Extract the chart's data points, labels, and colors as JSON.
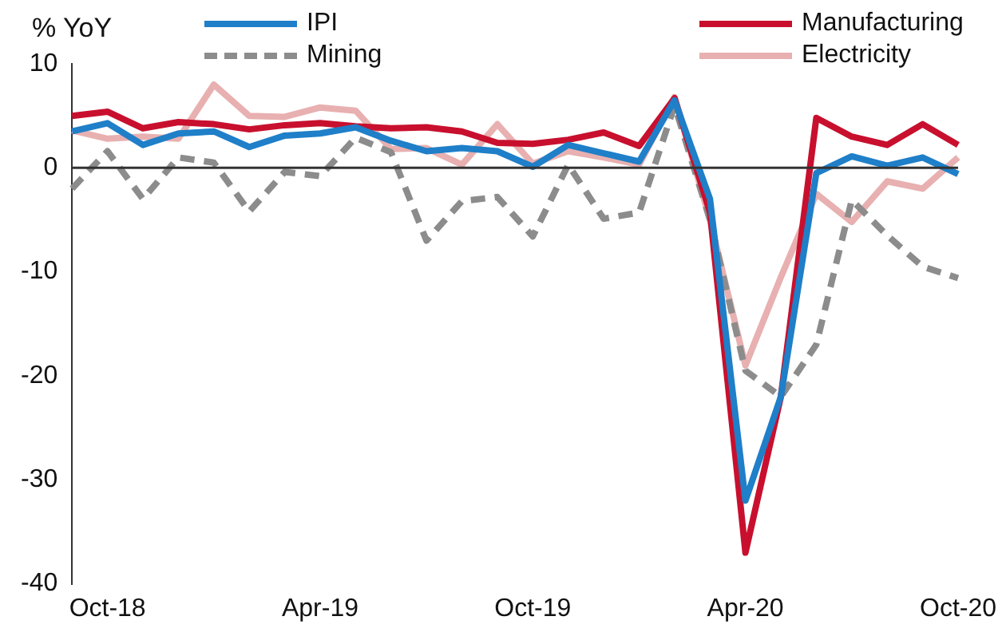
{
  "chart_data": {
    "type": "line",
    "ylabel": "% YoY",
    "categories": [
      null,
      "Oct-18",
      null,
      null,
      null,
      null,
      null,
      "Apr-19",
      null,
      null,
      null,
      null,
      null,
      "Oct-19",
      null,
      null,
      null,
      null,
      null,
      "Apr-20",
      null,
      null,
      null,
      null,
      null,
      "Oct-20"
    ],
    "series": [
      {
        "name": "IPI",
        "color": "#1f7fc8",
        "values": [
          3.5,
          4.3,
          2.2,
          3.3,
          3.5,
          2.0,
          3.1,
          3.3,
          3.9,
          2.6,
          1.6,
          1.9,
          1.6,
          0.1,
          2.2,
          1.4,
          0.6,
          6.5,
          -3,
          -32,
          -22,
          -0.5,
          1.1,
          0.2,
          1.0,
          -0.6
        ]
      },
      {
        "name": "Manufacturing",
        "color": "#c8102e",
        "values": [
          5.0,
          5.4,
          3.8,
          4.4,
          4.2,
          3.7,
          4.1,
          4.3,
          4.0,
          3.8,
          3.9,
          3.5,
          2.4,
          2.3,
          2.7,
          3.4,
          2.1,
          6.7,
          -4.3,
          -37,
          -22,
          4.8,
          3.0,
          2.2,
          4.2,
          2.2
        ]
      },
      {
        "name": "Mining",
        "color": "#8c8c8c",
        "line_style": "dashed",
        "values": [
          -2.0,
          1.6,
          -3.0,
          1.0,
          0.5,
          -4.2,
          -0.4,
          -0.8,
          2.9,
          1.5,
          -7.0,
          -3.2,
          -2.8,
          -6.6,
          0.3,
          -4.9,
          -4.3,
          6.0,
          -5,
          -19.5,
          -22,
          -17,
          -3.1,
          -6.5,
          -9.5,
          -10.6
        ]
      },
      {
        "name": "Electricity",
        "color": "#e8b0b0",
        "values": [
          3.6,
          2.8,
          3.0,
          2.8,
          8.0,
          5.0,
          4.9,
          5.8,
          5.5,
          1.8,
          1.9,
          0.3,
          4.2,
          0.4,
          1.6,
          1.0,
          0.3,
          6.8,
          -5,
          -19,
          -10.5,
          -2.5,
          -5.2,
          -1.3,
          -2.0,
          1.0
        ]
      }
    ],
    "ylim": [
      -40,
      10
    ],
    "yticks": [
      -40,
      -30,
      -20,
      -10,
      0,
      10
    ],
    "ref_lines": [
      {
        "axis": "y",
        "value": 0,
        "color": "#333333"
      }
    ],
    "grid": false,
    "legend": "top",
    "marker": "none",
    "line_style": "solid"
  }
}
